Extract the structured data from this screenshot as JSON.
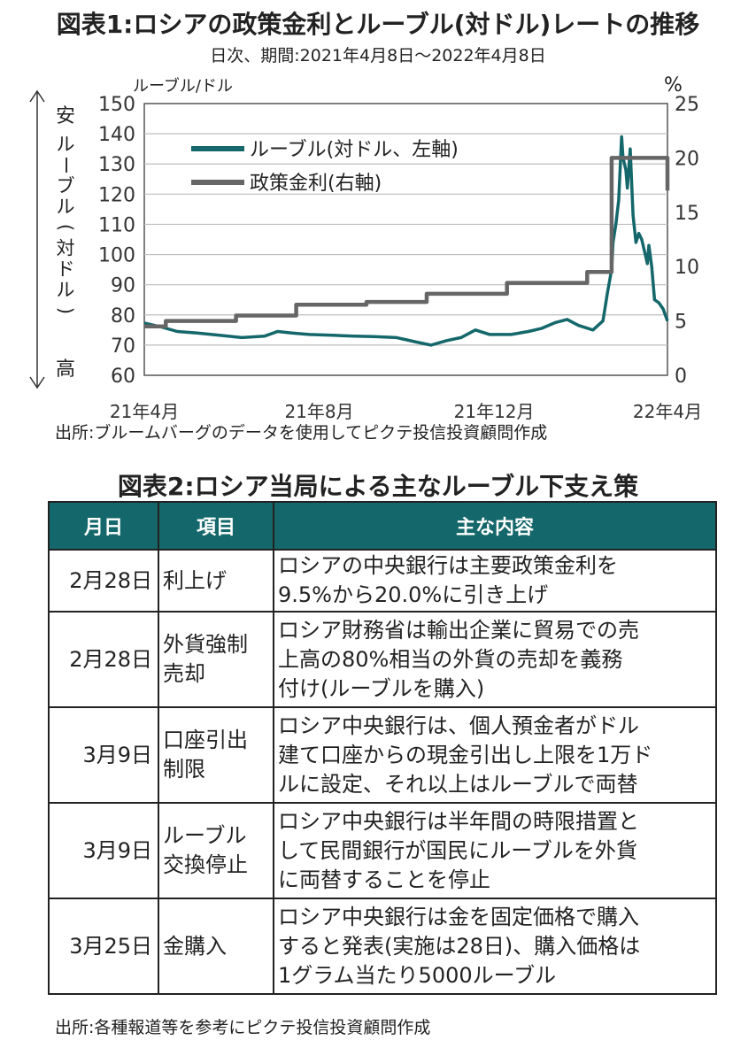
{
  "figure1": {
    "title": "図表1:ロシアの政策金利とルーブル(対ドル)レートの推移",
    "subtitle": "日次、期間:2021年4月8日～2022年4月8日",
    "unit_left": "ルーブル/ドル",
    "unit_right": "%",
    "left_axis_side_label": {
      "top": "安",
      "middle": [
        "ル",
        "ー",
        "ブ",
        "ル",
        "(",
        "対",
        "ド",
        "ル",
        ")"
      ],
      "bottom": "高"
    },
    "source": "出所:ブルームバーグのデータを使用してピクテ投信投資顧問作成"
  },
  "chart_data": {
    "type": "line",
    "x_tick_labels": [
      "21年4月",
      "21年8月",
      "21年12月",
      "22年4月"
    ],
    "x_tick_dates": [
      "2021-04-08",
      "2021-08-08",
      "2021-12-08",
      "2022-04-08"
    ],
    "xlim": [
      "2021-04-08",
      "2022-04-08"
    ],
    "y_left": {
      "ylim": [
        60,
        150
      ],
      "ticks": [
        60,
        70,
        80,
        90,
        100,
        110,
        120,
        130,
        140,
        150
      ]
    },
    "y_right": {
      "ylim": [
        0,
        25
      ],
      "ticks": [
        0,
        5,
        10,
        15,
        20,
        25
      ]
    },
    "grid": true,
    "legend_position": "top-left",
    "series": [
      {
        "name": "ルーブル(対ドル、左軸)",
        "axis": "left",
        "color": "#14676a",
        "points": [
          [
            "2021-04-08",
            77.3
          ],
          [
            "2021-04-20",
            76.0
          ],
          [
            "2021-05-01",
            74.5
          ],
          [
            "2021-05-15",
            74.0
          ],
          [
            "2021-06-01",
            73.2
          ],
          [
            "2021-06-15",
            72.5
          ],
          [
            "2021-07-01",
            73.0
          ],
          [
            "2021-07-10",
            74.5
          ],
          [
            "2021-07-20",
            74.0
          ],
          [
            "2021-08-01",
            73.5
          ],
          [
            "2021-08-15",
            73.3
          ],
          [
            "2021-09-01",
            73.0
          ],
          [
            "2021-09-15",
            72.8
          ],
          [
            "2021-10-01",
            72.5
          ],
          [
            "2021-10-15",
            71.0
          ],
          [
            "2021-10-25",
            70.0
          ],
          [
            "2021-11-05",
            71.5
          ],
          [
            "2021-11-15",
            72.5
          ],
          [
            "2021-11-25",
            75.0
          ],
          [
            "2021-12-05",
            73.5
          ],
          [
            "2021-12-20",
            73.5
          ],
          [
            "2022-01-01",
            74.5
          ],
          [
            "2022-01-10",
            75.5
          ],
          [
            "2022-01-20",
            77.5
          ],
          [
            "2022-01-28",
            78.5
          ],
          [
            "2022-02-05",
            76.5
          ],
          [
            "2022-02-15",
            75.0
          ],
          [
            "2022-02-22",
            78.0
          ],
          [
            "2022-02-24",
            84.0
          ],
          [
            "2022-02-25",
            87.0
          ],
          [
            "2022-02-28",
            95.0
          ],
          [
            "2022-03-01",
            104.0
          ],
          [
            "2022-03-03",
            110.0
          ],
          [
            "2022-03-05",
            118.0
          ],
          [
            "2022-03-07",
            139.0
          ],
          [
            "2022-03-08",
            132.0
          ],
          [
            "2022-03-10",
            128.0
          ],
          [
            "2022-03-11",
            122.0
          ],
          [
            "2022-03-13",
            135.0
          ],
          [
            "2022-03-15",
            113.0
          ],
          [
            "2022-03-17",
            104.0
          ],
          [
            "2022-03-19",
            107.0
          ],
          [
            "2022-03-21",
            105.0
          ],
          [
            "2022-03-23",
            101.0
          ],
          [
            "2022-03-25",
            97.0
          ],
          [
            "2022-03-26",
            103.0
          ],
          [
            "2022-03-28",
            96.0
          ],
          [
            "2022-03-30",
            85.0
          ],
          [
            "2022-04-02",
            84.0
          ],
          [
            "2022-04-05",
            82.0
          ],
          [
            "2022-04-08",
            78.0
          ]
        ]
      },
      {
        "name": "政策金利(右軸)",
        "axis": "right",
        "color": "#666666",
        "steps": [
          [
            "2021-04-08",
            4.5
          ],
          [
            "2021-04-23",
            5.0
          ],
          [
            "2021-06-11",
            5.5
          ],
          [
            "2021-07-23",
            6.5
          ],
          [
            "2021-09-10",
            6.75
          ],
          [
            "2021-10-22",
            7.5
          ],
          [
            "2021-12-17",
            8.5
          ],
          [
            "2022-02-11",
            9.5
          ],
          [
            "2022-02-28",
            20.0
          ],
          [
            "2022-04-08",
            17.0
          ]
        ]
      }
    ]
  },
  "figure2": {
    "title": "図表2:ロシア当局による主なルーブル下支え策",
    "headers": [
      "月日",
      "項目",
      "主な内容"
    ],
    "rows": [
      {
        "date": "2月28日",
        "item": [
          "利上げ"
        ],
        "content": [
          "ロシアの中央銀行は主要政策金利を",
          "9.5%から20.0%に引き上げ"
        ]
      },
      {
        "date": "2月28日",
        "item": [
          "外貨強制",
          "売却"
        ],
        "content": [
          "ロシア財務省は輸出企業に貿易での売",
          "上高の80%相当の外貨の売却を義務",
          "付け(ルーブルを購入)"
        ]
      },
      {
        "date": "3月9日",
        "item": [
          "口座引出",
          "制限"
        ],
        "content": [
          "ロシア中央銀行は、個人預金者がドル",
          "建て口座からの現金引出し上限を1万ド",
          "ルに設定、それ以上はルーブルで両替"
        ]
      },
      {
        "date": "3月9日",
        "item": [
          "ルーブル",
          "交換停止"
        ],
        "content": [
          "ロシア中央銀行は半年間の時限措置と",
          "して民間銀行が国民にルーブルを外貨",
          "に両替することを停止"
        ]
      },
      {
        "date": "3月25日",
        "item": [
          "金購入"
        ],
        "content": [
          "ロシア中央銀行は金を固定価格で購入",
          "すると発表(実施は28日)、購入価格は",
          "1グラム当たり5000ルーブル"
        ]
      }
    ],
    "source": "出所:各種報道等を参考にピクテ投信投資顧問作成"
  },
  "colors": {
    "teal": "#14676a",
    "gray": "#666666",
    "grid": "#bdbdbd"
  }
}
